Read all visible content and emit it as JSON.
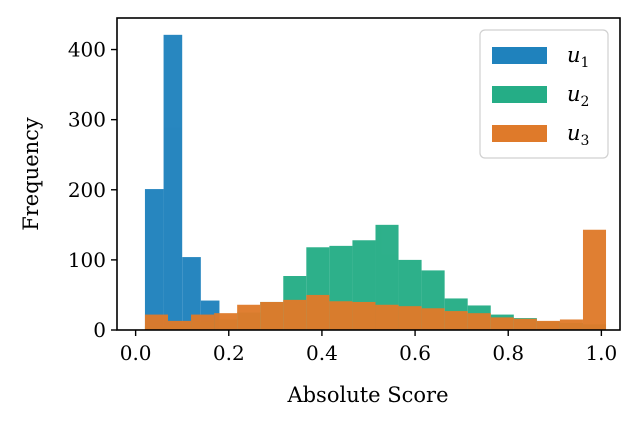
{
  "chart_data": {
    "type": "bar",
    "subtype": "overlaid histogram",
    "xlabel": "Absolute Score",
    "ylabel": "Frequency",
    "xlim": [
      -0.04,
      1.04
    ],
    "ylim": [
      0,
      445
    ],
    "x_ticks": [
      "0.0",
      "0.2",
      "0.4",
      "0.6",
      "0.8",
      "1.0"
    ],
    "y_ticks": [
      "0",
      "100",
      "200",
      "300",
      "400"
    ],
    "legend_position": "top-right",
    "series": [
      {
        "name": "u_1",
        "label_base": "u",
        "label_sub": "1",
        "color": "#1f82bd",
        "bins": [
          [
            0.02,
            0.06
          ],
          [
            0.06,
            0.1
          ],
          [
            0.1,
            0.14
          ],
          [
            0.14,
            0.18
          ]
        ],
        "values": [
          201,
          421,
          104,
          42
        ]
      },
      {
        "name": "u_2",
        "label_base": "u",
        "label_sub": "2",
        "color": "#25ad86",
        "bins": [
          [
            0.02,
            0.0695
          ],
          [
            0.0695,
            0.119
          ],
          [
            0.119,
            0.1685
          ],
          [
            0.1685,
            0.218
          ],
          [
            0.218,
            0.2675
          ],
          [
            0.2675,
            0.317
          ],
          [
            0.317,
            0.3665
          ],
          [
            0.3665,
            0.416
          ],
          [
            0.416,
            0.4655
          ],
          [
            0.4655,
            0.515
          ],
          [
            0.515,
            0.5645
          ],
          [
            0.5645,
            0.614
          ],
          [
            0.614,
            0.6635
          ],
          [
            0.6635,
            0.713
          ],
          [
            0.713,
            0.7625
          ],
          [
            0.7625,
            0.812
          ],
          [
            0.812,
            0.8615
          ],
          [
            0.8615,
            0.911
          ],
          [
            0.911,
            0.9605
          ],
          [
            0.9605,
            1.01
          ]
        ],
        "values": [
          5,
          8,
          12,
          15,
          25,
          40,
          77,
          118,
          120,
          128,
          150,
          100,
          85,
          45,
          35,
          22,
          17,
          12,
          10,
          8
        ]
      },
      {
        "name": "u_3",
        "label_base": "u",
        "label_sub": "3",
        "color": "#df7a2a",
        "bins": [
          [
            0.02,
            0.0695
          ],
          [
            0.0695,
            0.119
          ],
          [
            0.119,
            0.1685
          ],
          [
            0.1685,
            0.218
          ],
          [
            0.218,
            0.2675
          ],
          [
            0.2675,
            0.317
          ],
          [
            0.317,
            0.3665
          ],
          [
            0.3665,
            0.416
          ],
          [
            0.416,
            0.4655
          ],
          [
            0.4655,
            0.515
          ],
          [
            0.515,
            0.5645
          ],
          [
            0.5645,
            0.614
          ],
          [
            0.614,
            0.6635
          ],
          [
            0.6635,
            0.713
          ],
          [
            0.713,
            0.7625
          ],
          [
            0.7625,
            0.812
          ],
          [
            0.812,
            0.8615
          ],
          [
            0.8615,
            0.911
          ],
          [
            0.911,
            0.9605
          ],
          [
            0.9605,
            1.01
          ]
        ],
        "values": [
          22,
          13,
          22,
          24,
          36,
          40,
          43,
          50,
          41,
          40,
          36,
          34,
          31,
          27,
          24,
          18,
          16,
          13,
          15,
          143
        ]
      }
    ]
  }
}
